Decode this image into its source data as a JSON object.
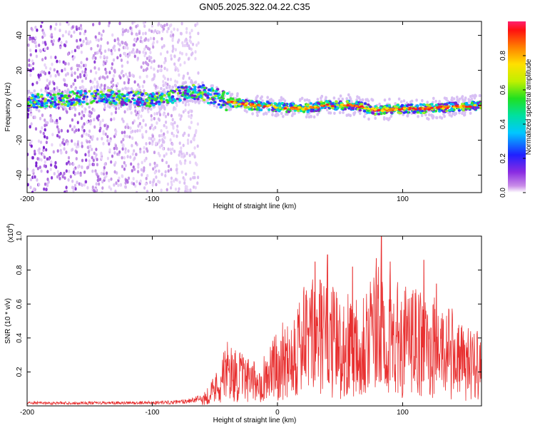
{
  "figure": {
    "title": "GN05.2025.322.04.22.C35"
  },
  "chart_data": [
    {
      "type": "heatmap",
      "title": "GN05.2025.322.04.22.C35",
      "xlabel": "Height of straight line (km)",
      "ylabel": "Frequency (Hz)",
      "xlim": [
        -200,
        163
      ],
      "ylim": [
        -50,
        48
      ],
      "xticks": [
        -200,
        -100,
        0,
        100
      ],
      "yticks": [
        -40,
        -20,
        0,
        20,
        40
      ],
      "xtick_labels": [
        "-200",
        "-100",
        "0",
        "100"
      ],
      "ytick_labels": [
        "-40",
        "-20",
        "0",
        "20",
        "40"
      ],
      "colorbar": {
        "label": "Normalized spectral amplitude",
        "range": [
          0,
          1
        ],
        "ticks": [
          0.0,
          0.2,
          0.4,
          0.6,
          0.8
        ],
        "tick_labels": [
          "0.0",
          "0.2",
          "0.4",
          "0.6",
          "0.8"
        ]
      },
      "noise_region_end_km": -63,
      "band_center_hz": [
        {
          "x": -200,
          "y": 2
        },
        {
          "x": -180,
          "y": 3
        },
        {
          "x": -160,
          "y": 4
        },
        {
          "x": -140,
          "y": 5
        },
        {
          "x": -120,
          "y": 4
        },
        {
          "x": -100,
          "y": 3
        },
        {
          "x": -90,
          "y": 4
        },
        {
          "x": -80,
          "y": 6
        },
        {
          "x": -70,
          "y": 8
        },
        {
          "x": -60,
          "y": 7
        },
        {
          "x": -50,
          "y": 5
        },
        {
          "x": -40,
          "y": 2
        },
        {
          "x": -20,
          "y": 0
        },
        {
          "x": 0,
          "y": -1
        },
        {
          "x": 20,
          "y": -2
        },
        {
          "x": 40,
          "y": 0
        },
        {
          "x": 60,
          "y": 0
        },
        {
          "x": 80,
          "y": -3
        },
        {
          "x": 100,
          "y": -2
        },
        {
          "x": 120,
          "y": -2
        },
        {
          "x": 140,
          "y": -1
        },
        {
          "x": 163,
          "y": 0
        }
      ]
    },
    {
      "type": "line",
      "xlabel": "Height of straight line (km)",
      "ylabel": "SNR (10 * v/v)",
      "y_multiplier": "(x10",
      "y_multiplier_exp": "4",
      "y_multiplier_close": ")",
      "xlim": [
        -200,
        163
      ],
      "ylim": [
        0,
        1.0
      ],
      "xticks": [
        -200,
        -100,
        0,
        100
      ],
      "yticks": [
        0.2,
        0.4,
        0.6,
        0.8,
        1.0
      ],
      "xtick_labels": [
        "-200",
        "-100",
        "0",
        "100"
      ],
      "ytick_labels": [
        "0.2",
        "0.4",
        "0.6",
        "0.8",
        "1.0"
      ],
      "series": [
        {
          "name": "SNR",
          "color": "#e83030",
          "envelope": [
            {
              "x": -200,
              "y": 0.02
            },
            {
              "x": -120,
              "y": 0.02
            },
            {
              "x": -80,
              "y": 0.025
            },
            {
              "x": -60,
              "y": 0.05
            },
            {
              "x": -50,
              "y": 0.15
            },
            {
              "x": -40,
              "y": 0.3
            },
            {
              "x": -30,
              "y": 0.25
            },
            {
              "x": -20,
              "y": 0.2
            },
            {
              "x": -10,
              "y": 0.25
            },
            {
              "x": 0,
              "y": 0.35
            },
            {
              "x": 10,
              "y": 0.45
            },
            {
              "x": 20,
              "y": 0.55
            },
            {
              "x": 30,
              "y": 0.6
            },
            {
              "x": 40,
              "y": 0.6
            },
            {
              "x": 50,
              "y": 0.5
            },
            {
              "x": 60,
              "y": 0.55
            },
            {
              "x": 70,
              "y": 0.6
            },
            {
              "x": 80,
              "y": 0.65
            },
            {
              "x": 90,
              "y": 0.6
            },
            {
              "x": 100,
              "y": 0.55
            },
            {
              "x": 110,
              "y": 0.55
            },
            {
              "x": 120,
              "y": 0.5
            },
            {
              "x": 130,
              "y": 0.5
            },
            {
              "x": 140,
              "y": 0.45
            },
            {
              "x": 150,
              "y": 0.35
            },
            {
              "x": 163,
              "y": 0.42
            }
          ],
          "peaks": [
            {
              "x": 30,
              "y": 0.85
            },
            {
              "x": 40,
              "y": 0.89
            },
            {
              "x": 60,
              "y": 0.82
            },
            {
              "x": 79,
              "y": 0.87
            },
            {
              "x": 83,
              "y": 1.0
            },
            {
              "x": 90,
              "y": 0.85
            },
            {
              "x": 117,
              "y": 0.86
            },
            {
              "x": 127,
              "y": 0.72
            }
          ]
        }
      ]
    }
  ]
}
